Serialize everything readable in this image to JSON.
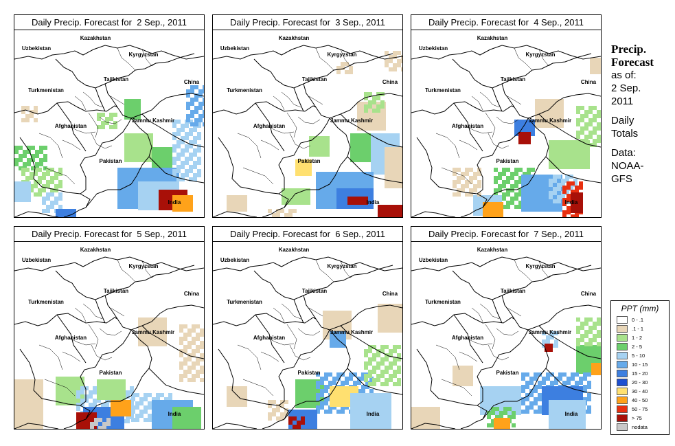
{
  "panels": [
    {
      "title": "Daily Precip. Forecast for  2 Sep., 2011"
    },
    {
      "title": "Daily Precip. Forecast for  3 Sep., 2011"
    },
    {
      "title": "Daily Precip. Forecast for  4 Sep., 2011"
    },
    {
      "title": "Daily Precip. Forecast for  5 Sep., 2011"
    },
    {
      "title": "Daily Precip. Forecast for  6 Sep., 2011"
    },
    {
      "title": "Daily Precip. Forecast for  7 Sep., 2011"
    }
  ],
  "map_labels": {
    "kazakhstan": "Kazakhstan",
    "uzbekistan": "Uzbekistan",
    "kyrgyzstan": "Kyrgyzstan",
    "tajikistan": "Tajikistan",
    "turkmenistan": "Turkmenistan",
    "china": "China",
    "jammu_kashmir": "Jammu Kashmir",
    "afghanistan": "Afghanistan",
    "pakistan": "Pakistan",
    "india": "India"
  },
  "side": {
    "title_line1": "Precip.",
    "title_line2": "Forecast",
    "asof_line1": "as of:",
    "asof_line2": "2 Sep.",
    "asof_line3": "2011",
    "daily_line1": "Daily",
    "daily_line2": "Totals",
    "data_line1": "Data:",
    "data_line2": "NOAA-",
    "data_line3": "GFS"
  },
  "legend": {
    "title": "PPT (mm)",
    "items": [
      {
        "label": "0 - .1",
        "color": "#ffffff"
      },
      {
        "label": ".1 - 1",
        "color": "#e8d6b8"
      },
      {
        "label": "1 - 2",
        "color": "#a8e28c"
      },
      {
        "label": "2 - 5",
        "color": "#6ccf6c"
      },
      {
        "label": "5 - 10",
        "color": "#a6d2f2"
      },
      {
        "label": "10 - 15",
        "color": "#66aaea"
      },
      {
        "label": "15 - 20",
        "color": "#3d7fe0"
      },
      {
        "label": "20 - 30",
        "color": "#1d4fd0"
      },
      {
        "label": "30 - 40",
        "color": "#ffe070"
      },
      {
        "label": "40 - 50",
        "color": "#ffa21a"
      },
      {
        "label": "50 - 75",
        "color": "#e83010"
      },
      {
        "label": "> 75",
        "color": "#a81008"
      },
      {
        "label": "nodata",
        "color": "#c8c8c8"
      }
    ]
  }
}
